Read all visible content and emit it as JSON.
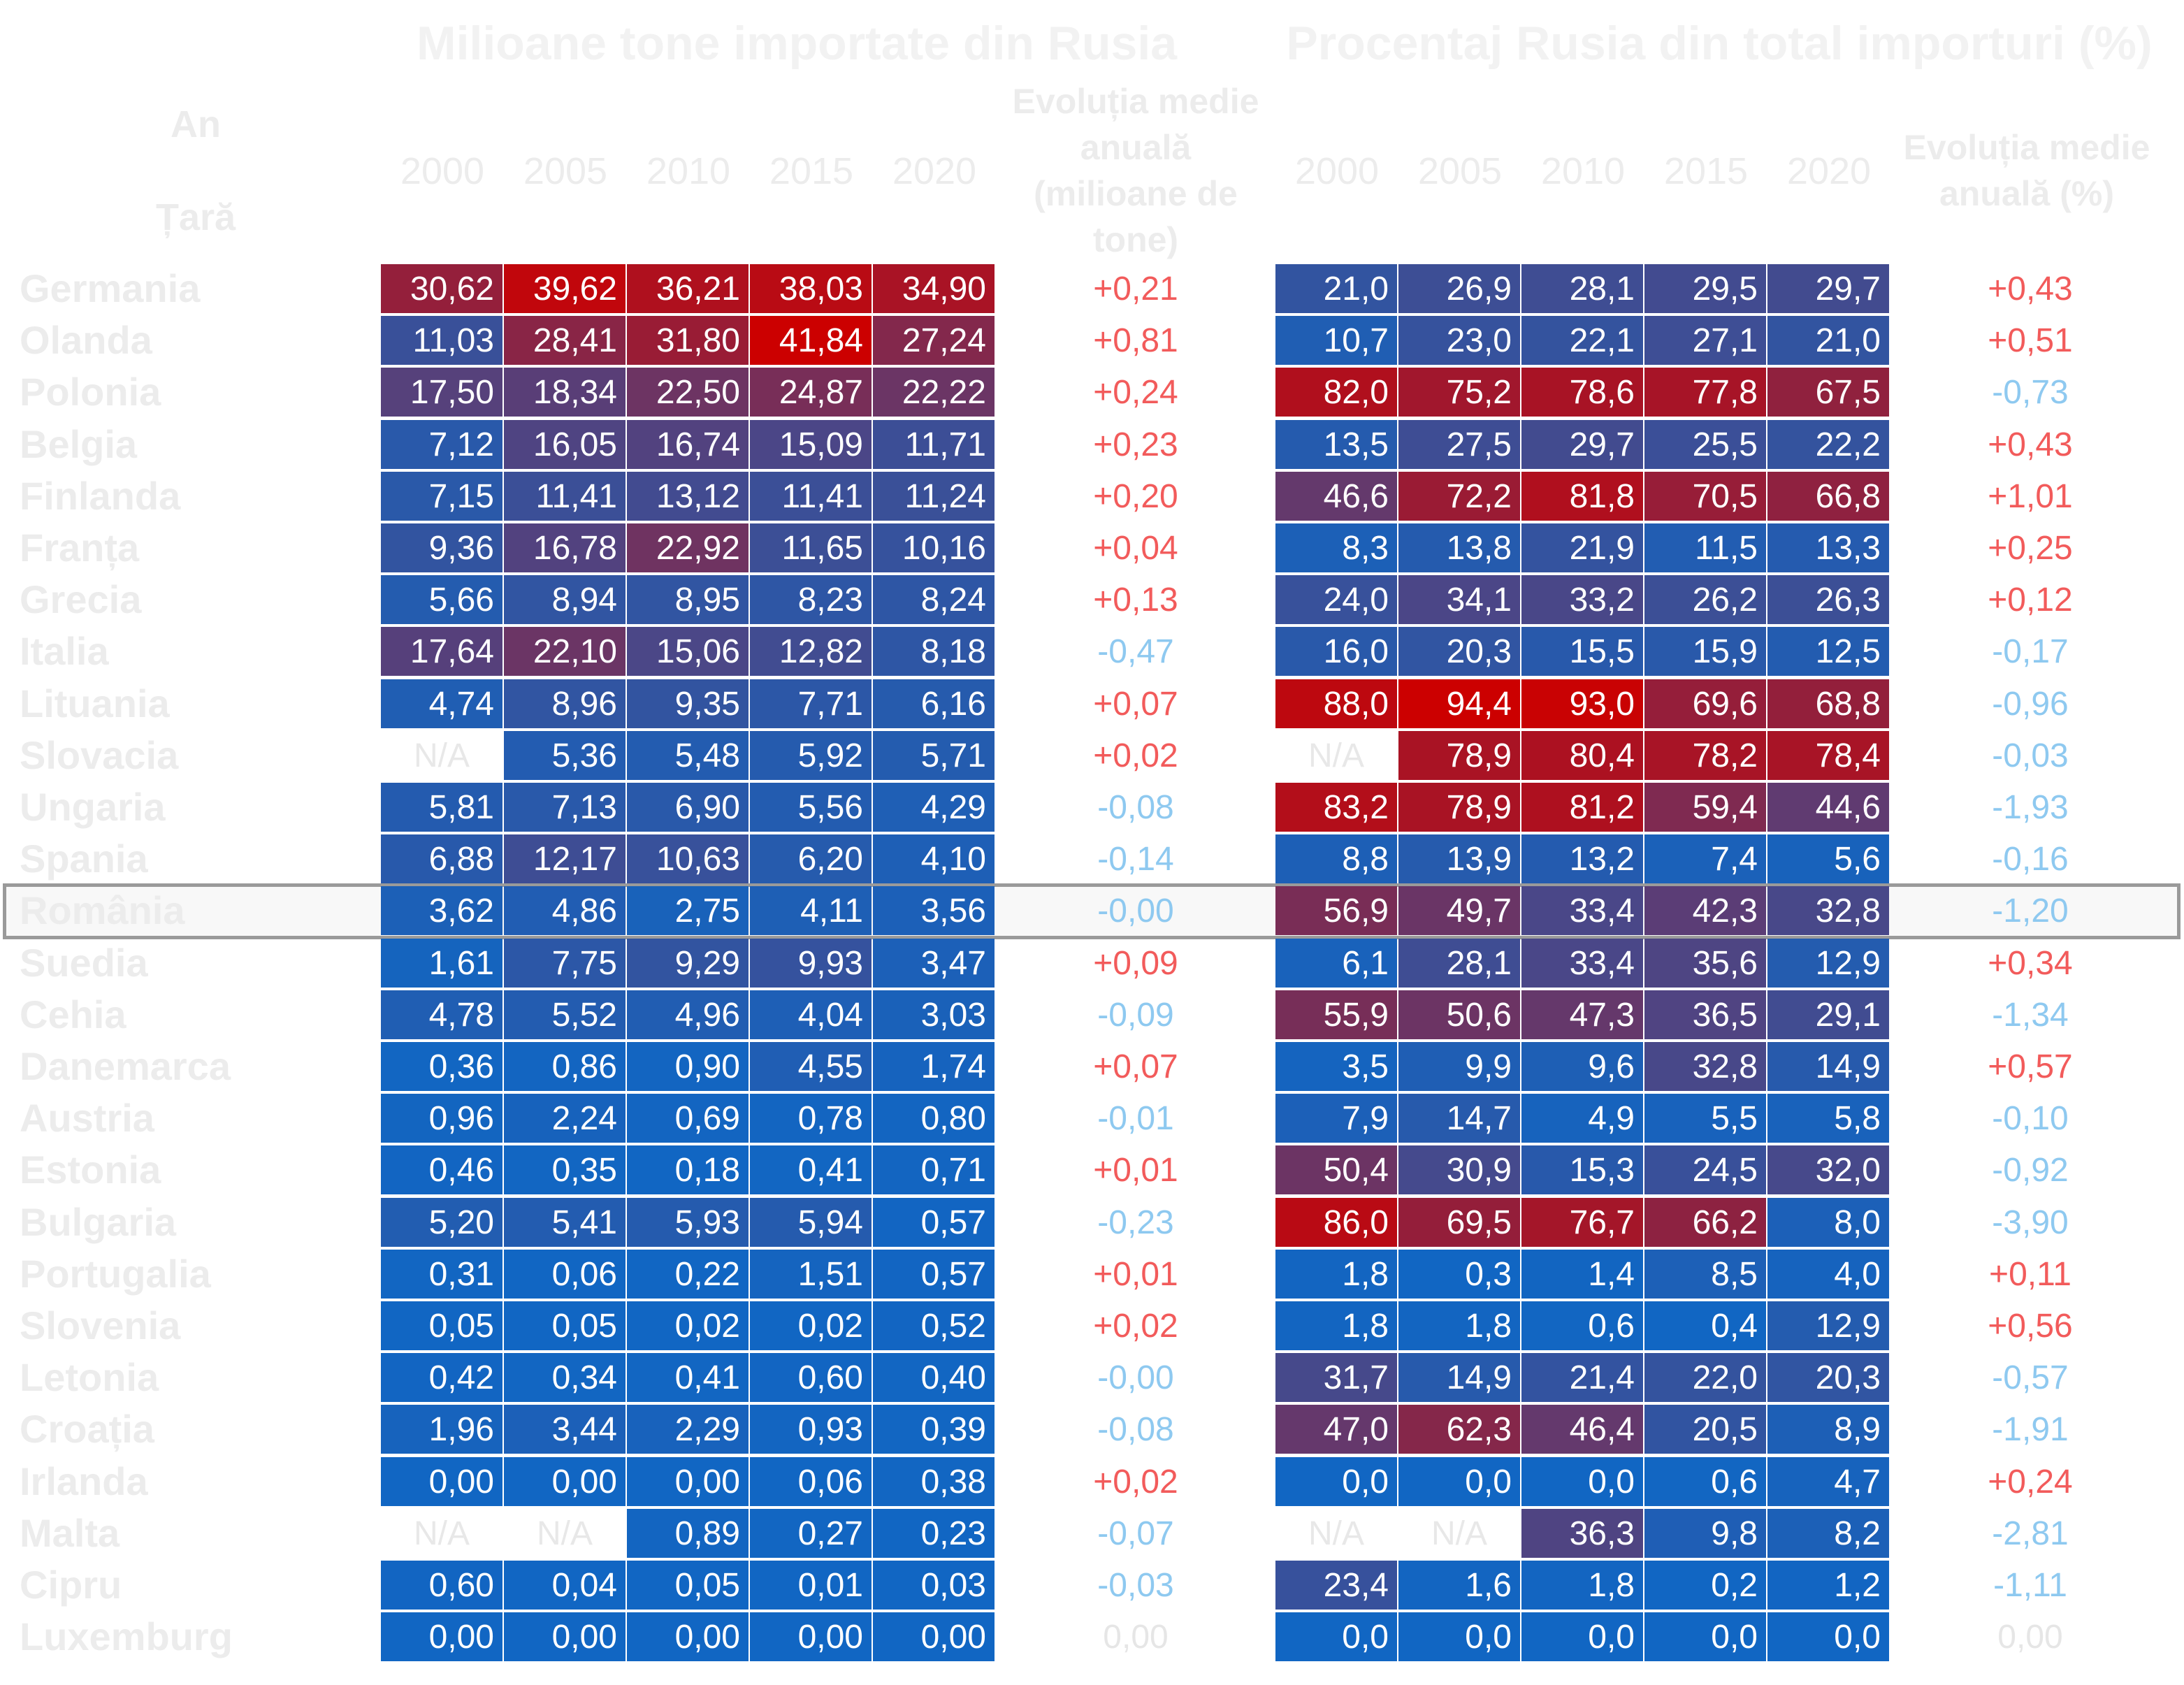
{
  "chart_data": {
    "type": "table",
    "title_left": "Milioane tone importate din Rusia",
    "title_right": "Procentaj Rusia din total importuri (%)",
    "row_header_top": "An",
    "row_header_bottom": "Țară",
    "years": [
      "2000",
      "2005",
      "2010",
      "2015",
      "2020"
    ],
    "evolution_header_left": "Evoluția medie anuală (milioane de tone)",
    "evolution_header_right": "Evoluția medie anuală (%)",
    "highlighted_country": "România",
    "colors": {
      "low": "#1166c3",
      "high": "#cc0000",
      "positive_text": "#f25b5b",
      "negative_text": "#8ec9f0",
      "zero_text": "#e6e6e6",
      "na_text": "#e8e8e8"
    },
    "rows": [
      {
        "country": "Germania",
        "tonnes": [
          "30,62",
          "39,62",
          "36,21",
          "38,03",
          "34,90"
        ],
        "tonnes_evo": "+0,21",
        "percent": [
          "21,0",
          "26,9",
          "28,1",
          "29,5",
          "29,7"
        ],
        "percent_evo": "+0,43"
      },
      {
        "country": "Olanda",
        "tonnes": [
          "11,03",
          "28,41",
          "31,80",
          "41,84",
          "27,24"
        ],
        "tonnes_evo": "+0,81",
        "percent": [
          "10,7",
          "23,0",
          "22,1",
          "27,1",
          "21,0"
        ],
        "percent_evo": "+0,51"
      },
      {
        "country": "Polonia",
        "tonnes": [
          "17,50",
          "18,34",
          "22,50",
          "24,87",
          "22,22"
        ],
        "tonnes_evo": "+0,24",
        "percent": [
          "82,0",
          "75,2",
          "78,6",
          "77,8",
          "67,5"
        ],
        "percent_evo": "-0,73"
      },
      {
        "country": "Belgia",
        "tonnes": [
          "7,12",
          "16,05",
          "16,74",
          "15,09",
          "11,71"
        ],
        "tonnes_evo": "+0,23",
        "percent": [
          "13,5",
          "27,5",
          "29,7",
          "25,5",
          "22,2"
        ],
        "percent_evo": "+0,43"
      },
      {
        "country": "Finlanda",
        "tonnes": [
          "7,15",
          "11,41",
          "13,12",
          "11,41",
          "11,24"
        ],
        "tonnes_evo": "+0,20",
        "percent": [
          "46,6",
          "72,2",
          "81,8",
          "70,5",
          "66,8"
        ],
        "percent_evo": "+1,01"
      },
      {
        "country": "Franța",
        "tonnes": [
          "9,36",
          "16,78",
          "22,92",
          "11,65",
          "10,16"
        ],
        "tonnes_evo": "+0,04",
        "percent": [
          "8,3",
          "13,8",
          "21,9",
          "11,5",
          "13,3"
        ],
        "percent_evo": "+0,25"
      },
      {
        "country": "Grecia",
        "tonnes": [
          "5,66",
          "8,94",
          "8,95",
          "8,23",
          "8,24"
        ],
        "tonnes_evo": "+0,13",
        "percent": [
          "24,0",
          "34,1",
          "33,2",
          "26,2",
          "26,3"
        ],
        "percent_evo": "+0,12"
      },
      {
        "country": "Italia",
        "tonnes": [
          "17,64",
          "22,10",
          "15,06",
          "12,82",
          "8,18"
        ],
        "tonnes_evo": "-0,47",
        "percent": [
          "16,0",
          "20,3",
          "15,5",
          "15,9",
          "12,5"
        ],
        "percent_evo": "-0,17"
      },
      {
        "country": "Lituania",
        "tonnes": [
          "4,74",
          "8,96",
          "9,35",
          "7,71",
          "6,16"
        ],
        "tonnes_evo": "+0,07",
        "percent": [
          "88,0",
          "94,4",
          "93,0",
          "69,6",
          "68,8"
        ],
        "percent_evo": "-0,96"
      },
      {
        "country": "Slovacia",
        "tonnes": [
          "N/A",
          "5,36",
          "5,48",
          "5,92",
          "5,71"
        ],
        "tonnes_evo": "+0,02",
        "percent": [
          "N/A",
          "78,9",
          "80,4",
          "78,2",
          "78,4"
        ],
        "percent_evo": "-0,03"
      },
      {
        "country": "Ungaria",
        "tonnes": [
          "5,81",
          "7,13",
          "6,90",
          "5,56",
          "4,29"
        ],
        "tonnes_evo": "-0,08",
        "percent": [
          "83,2",
          "78,9",
          "81,2",
          "59,4",
          "44,6"
        ],
        "percent_evo": "-1,93"
      },
      {
        "country": "Spania",
        "tonnes": [
          "6,88",
          "12,17",
          "10,63",
          "6,20",
          "4,10"
        ],
        "tonnes_evo": "-0,14",
        "percent": [
          "8,8",
          "13,9",
          "13,2",
          "7,4",
          "5,6"
        ],
        "percent_evo": "-0,16"
      },
      {
        "country": "România",
        "tonnes": [
          "3,62",
          "4,86",
          "2,75",
          "4,11",
          "3,56"
        ],
        "tonnes_evo": "-0,00",
        "percent": [
          "56,9",
          "49,7",
          "33,4",
          "42,3",
          "32,8"
        ],
        "percent_evo": "-1,20"
      },
      {
        "country": "Suedia",
        "tonnes": [
          "1,61",
          "7,75",
          "9,29",
          "9,93",
          "3,47"
        ],
        "tonnes_evo": "+0,09",
        "percent": [
          "6,1",
          "28,1",
          "33,4",
          "35,6",
          "12,9"
        ],
        "percent_evo": "+0,34"
      },
      {
        "country": "Cehia",
        "tonnes": [
          "4,78",
          "5,52",
          "4,96",
          "4,04",
          "3,03"
        ],
        "tonnes_evo": "-0,09",
        "percent": [
          "55,9",
          "50,6",
          "47,3",
          "36,5",
          "29,1"
        ],
        "percent_evo": "-1,34"
      },
      {
        "country": "Danemarca",
        "tonnes": [
          "0,36",
          "0,86",
          "0,90",
          "4,55",
          "1,74"
        ],
        "tonnes_evo": "+0,07",
        "percent": [
          "3,5",
          "9,9",
          "9,6",
          "32,8",
          "14,9"
        ],
        "percent_evo": "+0,57"
      },
      {
        "country": "Austria",
        "tonnes": [
          "0,96",
          "2,24",
          "0,69",
          "0,78",
          "0,80"
        ],
        "tonnes_evo": "-0,01",
        "percent": [
          "7,9",
          "14,7",
          "4,9",
          "5,5",
          "5,8"
        ],
        "percent_evo": "-0,10"
      },
      {
        "country": "Estonia",
        "tonnes": [
          "0,46",
          "0,35",
          "0,18",
          "0,41",
          "0,71"
        ],
        "tonnes_evo": "+0,01",
        "percent": [
          "50,4",
          "30,9",
          "15,3",
          "24,5",
          "32,0"
        ],
        "percent_evo": "-0,92"
      },
      {
        "country": "Bulgaria",
        "tonnes": [
          "5,20",
          "5,41",
          "5,93",
          "5,94",
          "0,57"
        ],
        "tonnes_evo": "-0,23",
        "percent": [
          "86,0",
          "69,5",
          "76,7",
          "66,2",
          "8,0"
        ],
        "percent_evo": "-3,90"
      },
      {
        "country": "Portugalia",
        "tonnes": [
          "0,31",
          "0,06",
          "0,22",
          "1,51",
          "0,57"
        ],
        "tonnes_evo": "+0,01",
        "percent": [
          "1,8",
          "0,3",
          "1,4",
          "8,5",
          "4,0"
        ],
        "percent_evo": "+0,11"
      },
      {
        "country": "Slovenia",
        "tonnes": [
          "0,05",
          "0,05",
          "0,02",
          "0,02",
          "0,52"
        ],
        "tonnes_evo": "+0,02",
        "percent": [
          "1,8",
          "1,8",
          "0,6",
          "0,4",
          "12,9"
        ],
        "percent_evo": "+0,56"
      },
      {
        "country": "Letonia",
        "tonnes": [
          "0,42",
          "0,34",
          "0,41",
          "0,60",
          "0,40"
        ],
        "tonnes_evo": "-0,00",
        "percent": [
          "31,7",
          "14,9",
          "21,4",
          "22,0",
          "20,3"
        ],
        "percent_evo": "-0,57"
      },
      {
        "country": "Croația",
        "tonnes": [
          "1,96",
          "3,44",
          "2,29",
          "0,93",
          "0,39"
        ],
        "tonnes_evo": "-0,08",
        "percent": [
          "47,0",
          "62,3",
          "46,4",
          "20,5",
          "8,9"
        ],
        "percent_evo": "-1,91"
      },
      {
        "country": "Irlanda",
        "tonnes": [
          "0,00",
          "0,00",
          "0,00",
          "0,06",
          "0,38"
        ],
        "tonnes_evo": "+0,02",
        "percent": [
          "0,0",
          "0,0",
          "0,0",
          "0,6",
          "4,7"
        ],
        "percent_evo": "+0,24"
      },
      {
        "country": "Malta",
        "tonnes": [
          "N/A",
          "N/A",
          "0,89",
          "0,27",
          "0,23"
        ],
        "tonnes_evo": "-0,07",
        "percent": [
          "N/A",
          "N/A",
          "36,3",
          "9,8",
          "8,2"
        ],
        "percent_evo": "-2,81"
      },
      {
        "country": "Cipru",
        "tonnes": [
          "0,60",
          "0,04",
          "0,05",
          "0,01",
          "0,03"
        ],
        "tonnes_evo": "-0,03",
        "percent": [
          "23,4",
          "1,6",
          "1,8",
          "0,2",
          "1,2"
        ],
        "percent_evo": "-1,11"
      },
      {
        "country": "Luxemburg",
        "tonnes": [
          "0,00",
          "0,00",
          "0,00",
          "0,00",
          "0,00"
        ],
        "tonnes_evo": "0,00",
        "percent": [
          "0,0",
          "0,0",
          "0,0",
          "0,0",
          "0,0"
        ],
        "percent_evo": "0,00"
      }
    ]
  }
}
